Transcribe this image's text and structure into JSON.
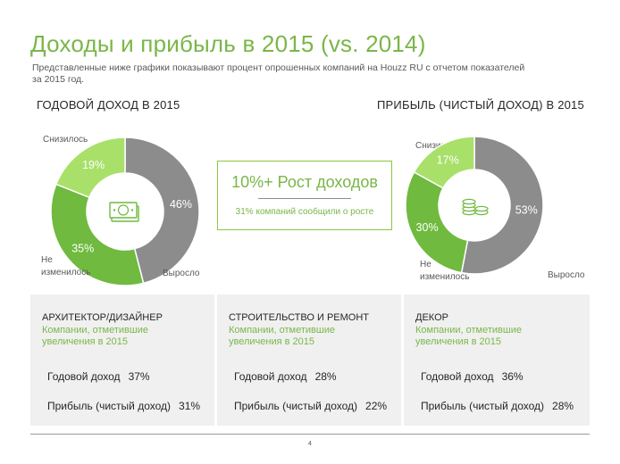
{
  "page": {
    "title": "Доходы и прибыль в 2015 (vs. 2014)",
    "subtitle": "Представленные ниже графики показывают процент опрошенных компаний на Houzz RU с отчетом показателей за 2015 год.",
    "page_number": "4"
  },
  "colors": {
    "decreased": "#8c8c8c",
    "increased": "#6fba3f",
    "unchanged": "#a8e06a",
    "accent": "#7ab648"
  },
  "highlight": {
    "headline": "10%+ Рост доходов",
    "caption": "31% компаний сообщили о росте"
  },
  "chart_data": [
    {
      "type": "pie",
      "title": "ГОДОВОЙ ДОХОД  В 2015",
      "center_icon": "money-bill-icon",
      "slices": [
        {
          "label": "Снизилось",
          "value": 46,
          "value_label": "46%",
          "color": "#8c8c8c"
        },
        {
          "label": "Выросло",
          "value": 35,
          "value_label": "35%",
          "color": "#6fba3f"
        },
        {
          "label": "Не изменилось",
          "value": 19,
          "value_label": "19%",
          "color": "#a8e06a"
        }
      ]
    },
    {
      "type": "pie",
      "title": "ПРИБЫЛЬ  (ЧИСТЫЙ ДОХОД) В 2015",
      "center_icon": "coins-icon",
      "slices": [
        {
          "label": "Снизилось",
          "value": 53,
          "value_label": "53%",
          "color": "#8c8c8c"
        },
        {
          "label": "Выросло",
          "value": 30,
          "value_label": "30%",
          "color": "#6fba3f"
        },
        {
          "label": "Не изменилось",
          "value": 17,
          "value_label": "17%",
          "color": "#a8e06a"
        }
      ]
    }
  ],
  "panels": [
    {
      "title": "АРХИТЕКТОР/ДИЗАЙНЕР",
      "subtitle": "Компании,  отметившие увеличения  в 2015",
      "revenue_label": "Годовой доход",
      "revenue_value": "37%",
      "profit_label": "Прибыль (чистый доход)",
      "profit_value": "31%"
    },
    {
      "title": "СТРОИТЕЛЬСТВО  И РЕМОНТ",
      "subtitle": "Компании,  отметившие увеличения  в 2015",
      "revenue_label": "Годовой доход",
      "revenue_value": "28%",
      "profit_label": "Прибыль (чистый доход)",
      "profit_value": "22%"
    },
    {
      "title": "ДЕКОР",
      "subtitle": "Компании,  отметившие увеличения  в 2015",
      "revenue_label": "Годовой доход",
      "revenue_value": "36%",
      "profit_label": "Прибыль (чистый доход)",
      "profit_value": "28%"
    }
  ]
}
